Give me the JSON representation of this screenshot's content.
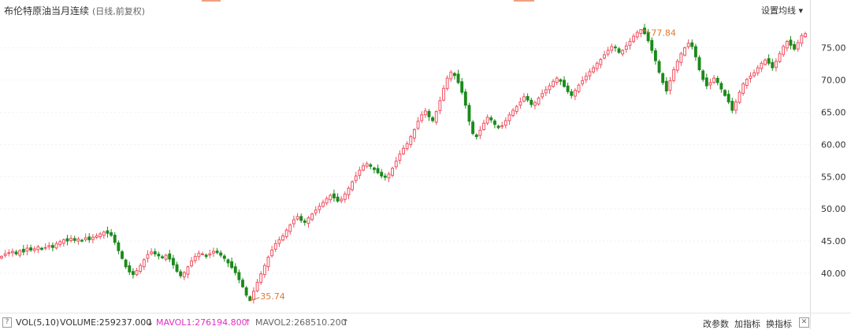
{
  "header": {
    "title": "布伦特原油当月连续",
    "subtitle": "(日线,前复权)",
    "ma_button": "设置均线 ▾"
  },
  "footer": {
    "help_icon": "?",
    "vol_label": "VOL(5,10)",
    "volume": "VOLUME:259237.000",
    "volume_arrow": "↓",
    "mavol1": "MAVOL1:276194.800",
    "mavol1_arrow": "↑",
    "mavol2": "MAVOL2:268510.200",
    "mavol2_arrow": "↑",
    "buttons": [
      "改参数",
      "加指标",
      "换指标"
    ],
    "close_icon": "✕"
  },
  "colors": {
    "up": "#f05060",
    "down": "#1a8a1a",
    "annotation": "#e07830",
    "axis_text": "#333333"
  },
  "chart_data": {
    "type": "candlestick",
    "y_ticks": [
      "40.00",
      "45.00",
      "50.00",
      "55.00",
      "60.00",
      "65.00",
      "70.00",
      "75.00"
    ],
    "y_tick_values": [
      40,
      45,
      50,
      55,
      60,
      65,
      70,
      75
    ],
    "ylim": [
      34.0,
      79.0
    ],
    "annotations": [
      {
        "label": "77.84",
        "value": 77.84,
        "kind": "high"
      },
      {
        "label": "35.74",
        "value": 35.74,
        "kind": "low"
      }
    ],
    "close_series": [
      42.6,
      43.0,
      43.2,
      43.4,
      43.0,
      43.5,
      43.3,
      43.9,
      43.6,
      43.8,
      44.1,
      43.7,
      44.0,
      44.3,
      44.0,
      44.6,
      44.9,
      45.2,
      45.0,
      45.4,
      45.1,
      45.3,
      45.0,
      45.5,
      45.2,
      45.6,
      45.8,
      46.1,
      46.4,
      46.2,
      45.9,
      44.8,
      43.5,
      42.3,
      41.0,
      40.2,
      39.8,
      40.4,
      41.2,
      42.1,
      42.9,
      43.3,
      43.0,
      42.7,
      42.4,
      42.8,
      42.2,
      41.3,
      40.3,
      39.6,
      40.1,
      41.0,
      41.9,
      42.6,
      43.1,
      43.0,
      42.6,
      43.0,
      43.4,
      43.2,
      42.8,
      42.3,
      41.6,
      40.9,
      40.1,
      39.0,
      37.9,
      36.6,
      35.74,
      37.2,
      38.6,
      39.9,
      41.2,
      42.5,
      43.6,
      44.6,
      45.2,
      45.8,
      46.7,
      47.5,
      48.3,
      48.8,
      48.2,
      47.9,
      48.6,
      49.2,
      49.8,
      50.4,
      51.0,
      51.6,
      52.1,
      51.7,
      51.2,
      51.5,
      52.3,
      53.2,
      54.2,
      55.1,
      56.0,
      56.7,
      57.0,
      56.6,
      56.1,
      55.6,
      55.1,
      54.9,
      55.4,
      56.3,
      57.4,
      58.5,
      59.4,
      60.1,
      61.2,
      62.3,
      63.6,
      64.6,
      65.2,
      64.3,
      63.7,
      65.1,
      66.8,
      68.7,
      70.3,
      71.2,
      70.7,
      69.6,
      68.1,
      66.1,
      63.6,
      61.7,
      61.2,
      62.2,
      63.3,
      64.2,
      63.8,
      63.1,
      62.6,
      62.9,
      63.7,
      64.6,
      65.3,
      65.9,
      66.6,
      67.4,
      66.9,
      66.2,
      66.5,
      67.2,
      67.9,
      68.5,
      69.1,
      69.8,
      70.3,
      69.8,
      69.0,
      68.2,
      67.6,
      68.4,
      69.2,
      69.9,
      70.6,
      71.3,
      71.9,
      72.6,
      73.2,
      73.9,
      74.6,
      75.2,
      75.0,
      74.3,
      74.6,
      75.3,
      76.0,
      76.8,
      77.4,
      77.84,
      77.2,
      76.1,
      74.6,
      73.0,
      71.2,
      69.6,
      68.3,
      69.9,
      71.6,
      72.9,
      74.1,
      75.0,
      75.7,
      75.2,
      73.6,
      71.6,
      70.1,
      69.1,
      69.6,
      70.3,
      69.6,
      68.6,
      67.6,
      66.6,
      65.3,
      66.6,
      68.1,
      69.4,
      70.1,
      70.6,
      71.1,
      71.9,
      72.6,
      73.1,
      72.6,
      71.9,
      72.9,
      74.1,
      75.2,
      76.0,
      75.4,
      74.8,
      75.8,
      76.9,
      77.2
    ]
  }
}
